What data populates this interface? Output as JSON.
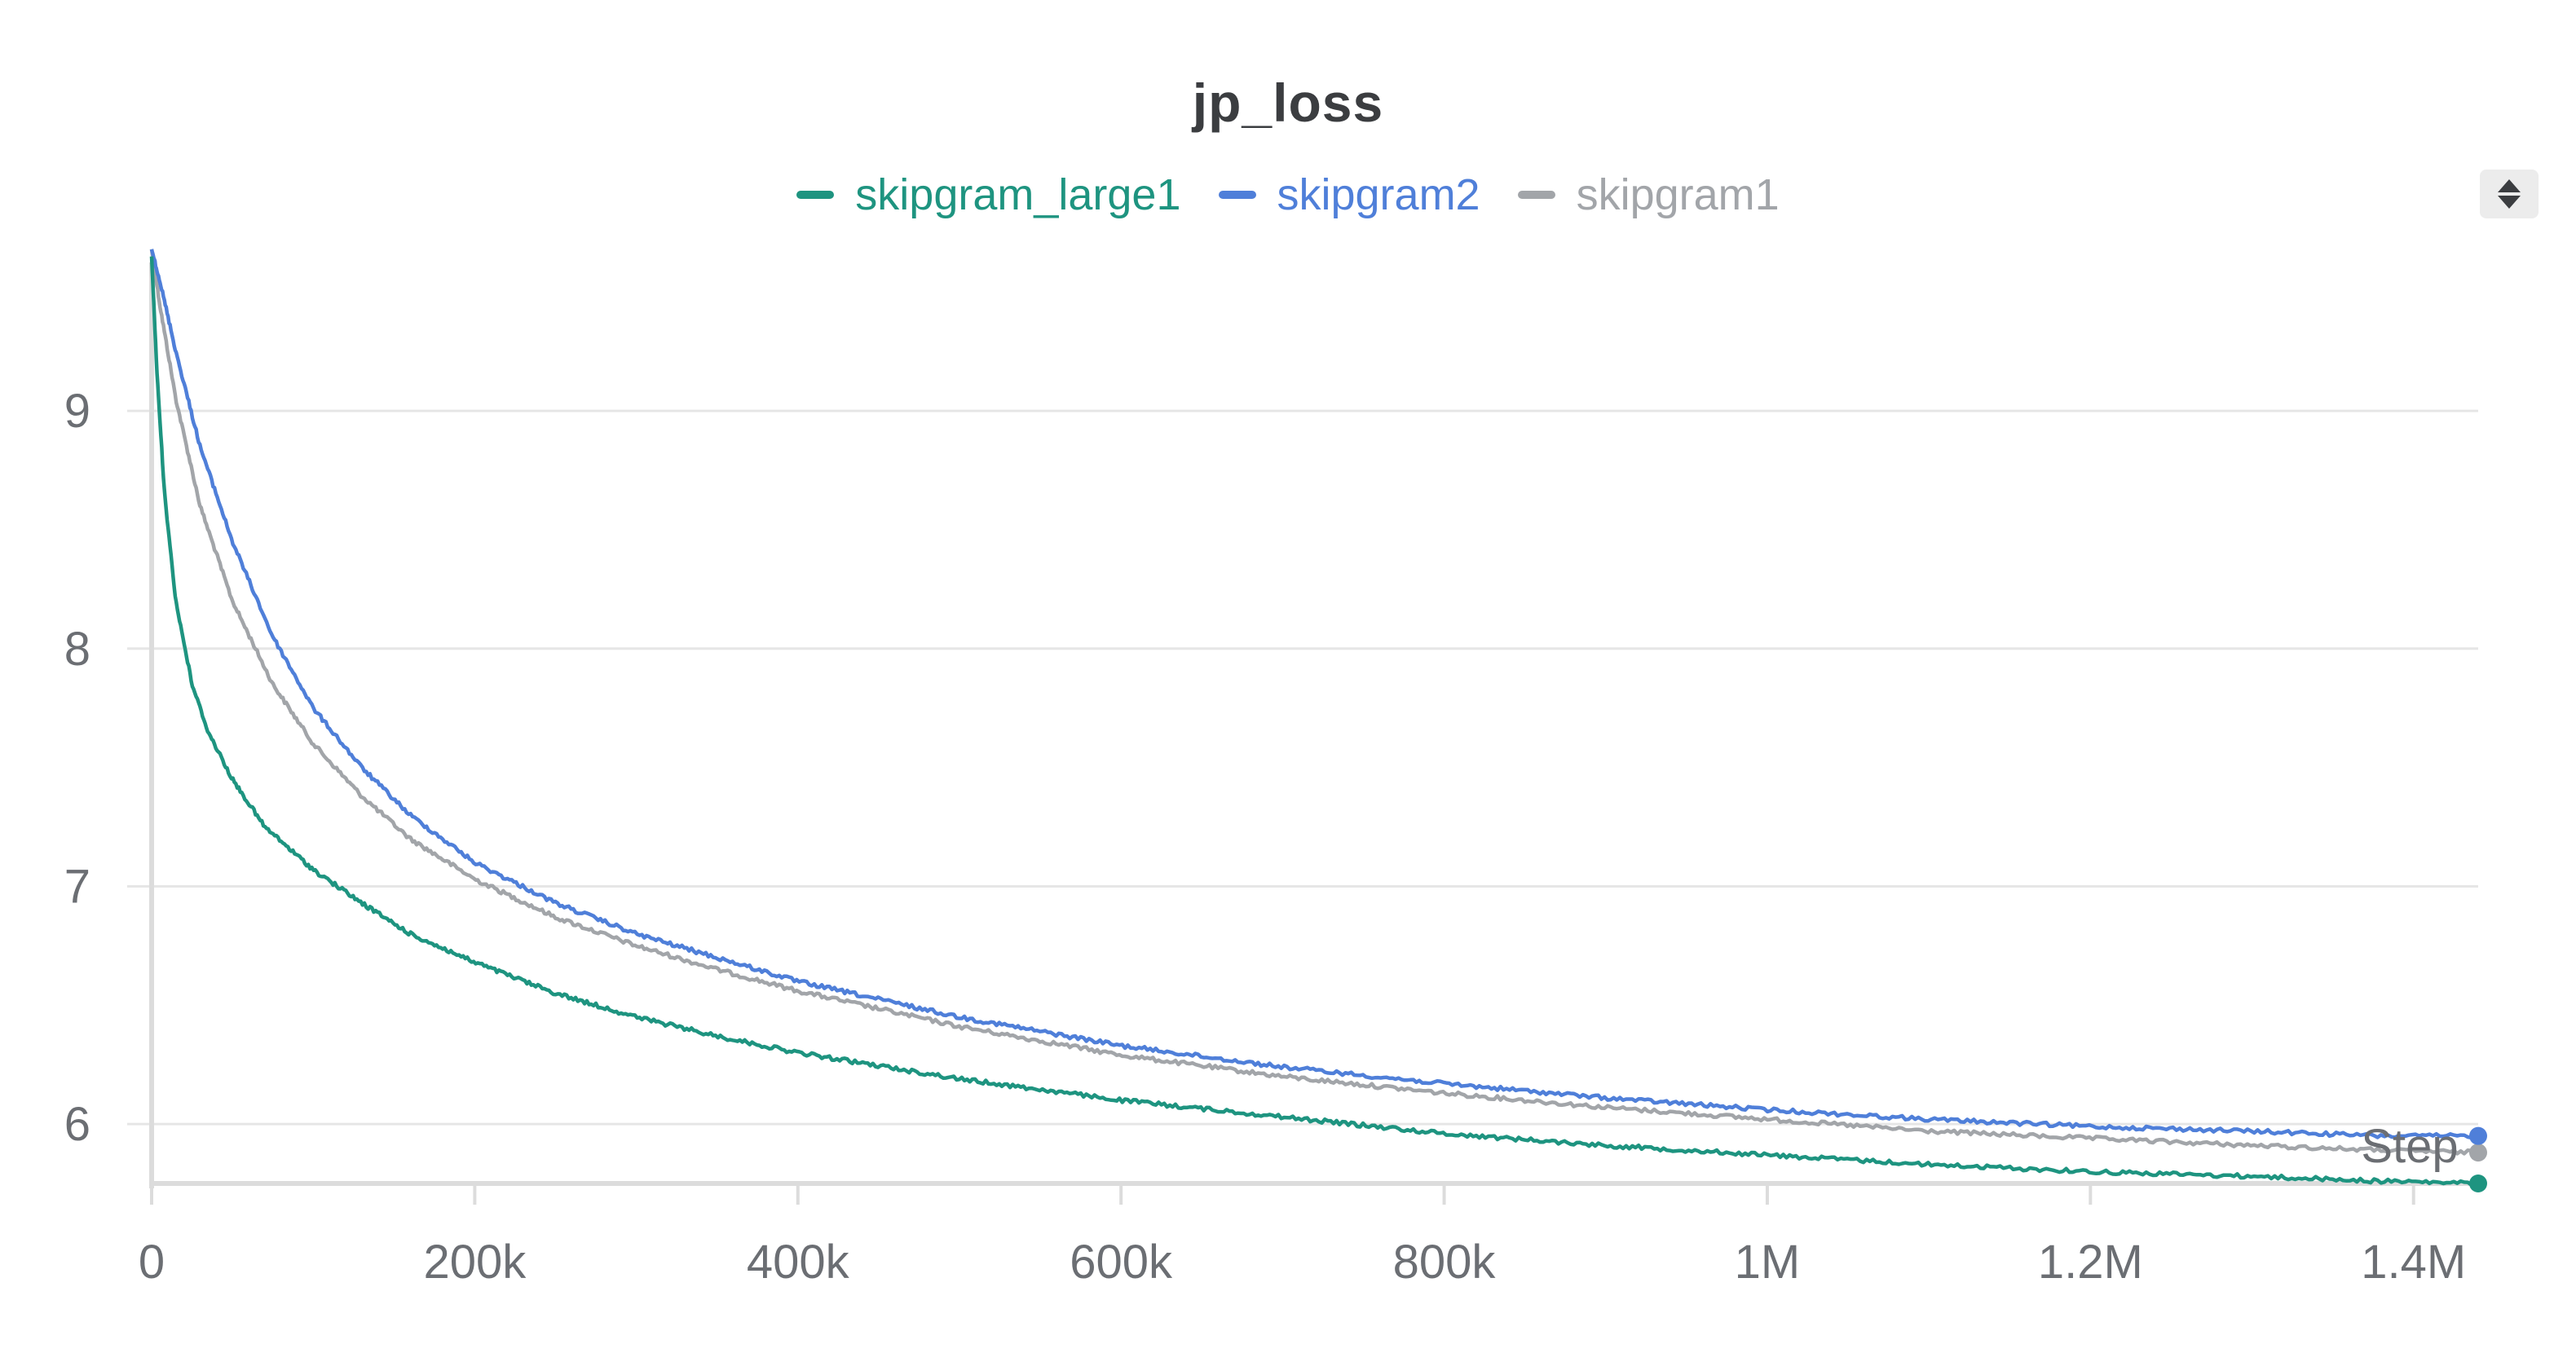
{
  "chart_data": {
    "type": "line",
    "title": "jp_loss",
    "xlabel": "Step",
    "ylabel": "",
    "xlim": [
      0,
      1440000
    ],
    "ylim": [
      5.75,
      9.7
    ],
    "grid": true,
    "legend_placement": "top-center",
    "x_ticks": [
      {
        "value": 0,
        "label": "0"
      },
      {
        "value": 200000,
        "label": "200k"
      },
      {
        "value": 400000,
        "label": "400k"
      },
      {
        "value": 600000,
        "label": "600k"
      },
      {
        "value": 800000,
        "label": "800k"
      },
      {
        "value": 1000000,
        "label": "1M"
      },
      {
        "value": 1200000,
        "label": "1.2M"
      },
      {
        "value": 1400000,
        "label": "1.4M"
      }
    ],
    "y_ticks": [
      {
        "value": 6,
        "label": "6"
      },
      {
        "value": 7,
        "label": "7"
      },
      {
        "value": 8,
        "label": "8"
      },
      {
        "value": 9,
        "label": "9"
      }
    ],
    "series": [
      {
        "name": "skipgram_large1",
        "color": "#1e9480",
        "x": [
          0,
          3000,
          8000,
          15000,
          25000,
          35000,
          50000,
          70000,
          100000,
          130000,
          160000,
          200000,
          250000,
          300000,
          350000,
          400000,
          500000,
          600000,
          700000,
          800000,
          900000,
          1000000,
          1100000,
          1200000,
          1300000,
          1380000,
          1440000
        ],
        "y": [
          9.65,
          9.2,
          8.65,
          8.2,
          7.85,
          7.65,
          7.45,
          7.25,
          7.07,
          6.93,
          6.8,
          6.68,
          6.55,
          6.45,
          6.37,
          6.3,
          6.19,
          6.1,
          6.03,
          5.96,
          5.91,
          5.87,
          5.83,
          5.8,
          5.78,
          5.76,
          5.75
        ]
      },
      {
        "name": "skipgram2",
        "color": "#4f7fd9",
        "x": [
          0,
          5000,
          15000,
          30000,
          50000,
          75000,
          100000,
          130000,
          160000,
          200000,
          250000,
          300000,
          350000,
          400000,
          500000,
          600000,
          700000,
          800000,
          900000,
          1000000,
          1100000,
          1200000,
          1300000,
          1380000,
          1440000
        ],
        "y": [
          9.68,
          9.55,
          9.25,
          8.85,
          8.45,
          8.05,
          7.75,
          7.5,
          7.3,
          7.1,
          6.93,
          6.8,
          6.7,
          6.6,
          6.45,
          6.33,
          6.24,
          6.17,
          6.11,
          6.06,
          6.02,
          5.99,
          5.97,
          5.95,
          5.95
        ]
      },
      {
        "name": "skipgram1",
        "color": "#a2a5a9",
        "x": [
          0,
          5000,
          15000,
          30000,
          50000,
          75000,
          100000,
          130000,
          160000,
          200000,
          250000,
          300000,
          350000,
          400000,
          500000,
          600000,
          700000,
          800000,
          900000,
          1000000,
          1100000,
          1200000,
          1300000,
          1380000,
          1440000
        ],
        "y": [
          9.68,
          9.45,
          9.05,
          8.6,
          8.2,
          7.85,
          7.6,
          7.38,
          7.2,
          7.03,
          6.87,
          6.75,
          6.65,
          6.56,
          6.41,
          6.29,
          6.2,
          6.13,
          6.07,
          6.02,
          5.97,
          5.94,
          5.91,
          5.89,
          5.88
        ]
      }
    ]
  },
  "legend_toggle_icon": "sort-arrows-icon"
}
